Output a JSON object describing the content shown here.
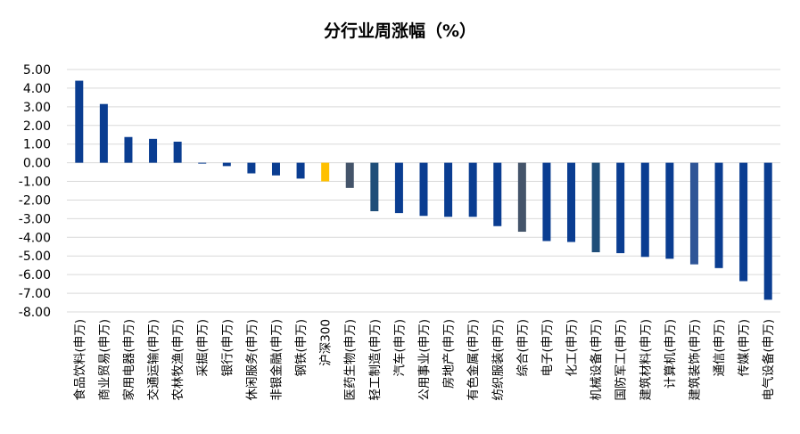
{
  "chart_data": {
    "type": "bar",
    "title": "分行业周涨幅（%）",
    "xlabel": "",
    "ylabel": "",
    "ylim": [
      -8,
      5
    ],
    "ytick_step": 1,
    "grid": "horizontal",
    "legend": "none",
    "categories": [
      "食品饮料(申万)",
      "商业贸易(申万)",
      "家用电器(申万)",
      "交通运输(申万)",
      "农林牧渔(申万)",
      "采掘(申万)",
      "银行(申万)",
      "休闲服务(申万)",
      "非银金融(申万)",
      "钢铁(申万)",
      "沪深300",
      "医药生物(申万)",
      "轻工制造(申万)",
      "汽车(申万)",
      "公用事业(申万)",
      "房地产(申万)",
      "有色金属(申万)",
      "纺织服装(申万)",
      "综合(申万)",
      "电子(申万)",
      "化工(申万)",
      "机械设备(申万)",
      "国防军工(申万)",
      "建筑材料(申万)",
      "计算机(申万)",
      "建筑装饰(申万)",
      "通信(申万)",
      "传媒(申万)",
      "电气设备(申万)"
    ],
    "values": [
      4.4,
      3.15,
      1.38,
      1.28,
      1.13,
      -0.03,
      -0.18,
      -0.57,
      -0.68,
      -0.85,
      -1.0,
      -1.35,
      -2.6,
      -2.7,
      -2.85,
      -2.9,
      -2.9,
      -3.4,
      -3.7,
      -4.2,
      -4.25,
      -4.8,
      -4.85,
      -5.05,
      -5.15,
      -5.45,
      -5.65,
      -6.35,
      -7.35
    ],
    "colors": [
      "#0a3d91",
      "#0a3d91",
      "#0a3d91",
      "#0a3d91",
      "#0a3d91",
      "#0a3d91",
      "#0a3d91",
      "#0a3d91",
      "#0a3d91",
      "#0a3d91",
      "#ffc000",
      "#44546a",
      "#1f4e79",
      "#0a3d91",
      "#0a3d91",
      "#0a3d91",
      "#0a3d91",
      "#0a3d91",
      "#44546a",
      "#0a3d91",
      "#0a3d91",
      "#1f4e79",
      "#0a3d91",
      "#0a3d91",
      "#0a3d91",
      "#2f5597",
      "#0a3d91",
      "#0a3d91",
      "#0a3d91"
    ]
  }
}
